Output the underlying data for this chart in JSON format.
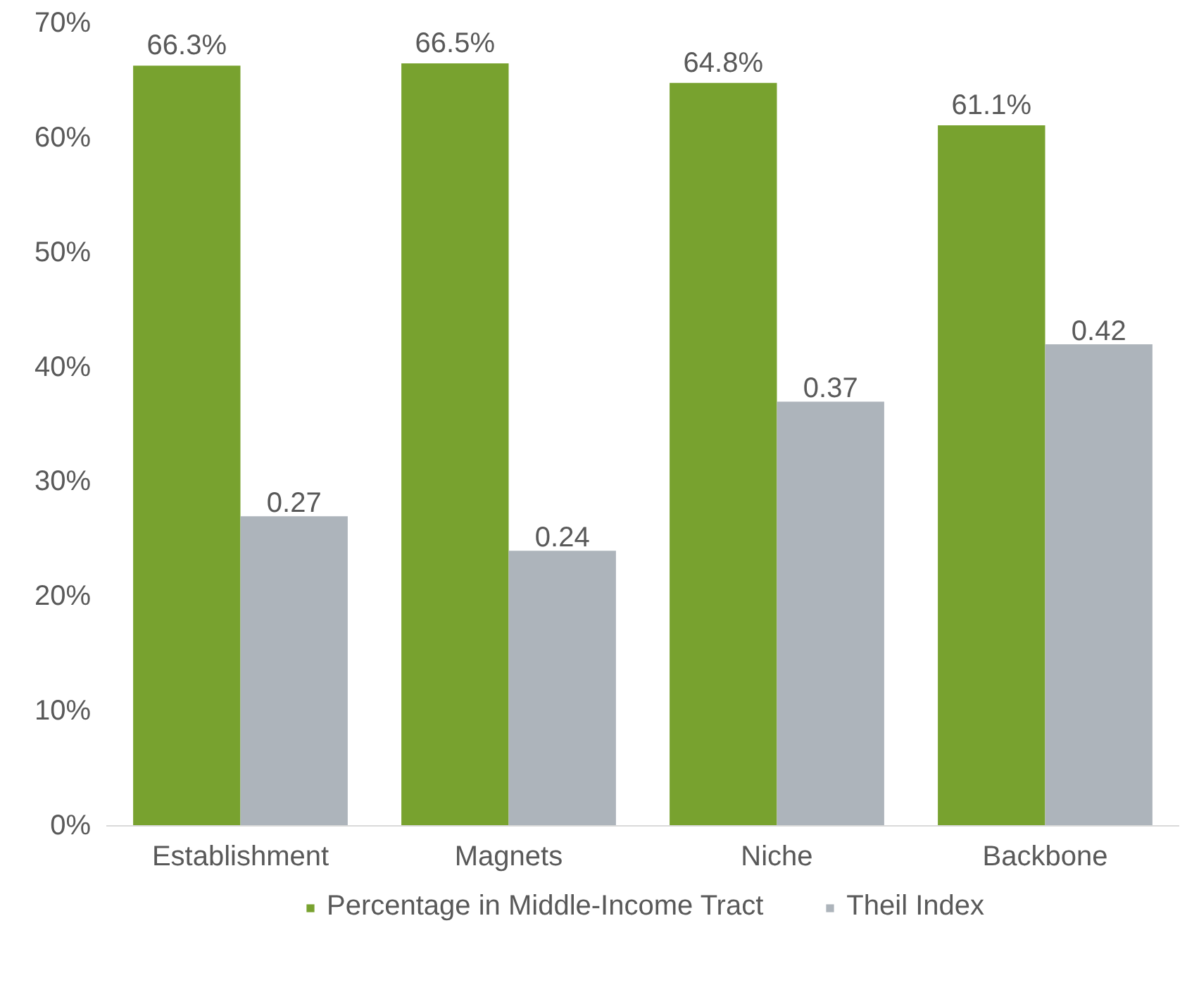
{
  "chart_data": {
    "type": "bar",
    "categories": [
      "Establishment",
      "Magnets",
      "Niche",
      "Backbone"
    ],
    "series": [
      {
        "name": "Percentage in Middle-Income Tract",
        "color": "#78a22f",
        "values": [
          66.3,
          66.5,
          64.8,
          61.1
        ],
        "value_labels": [
          "66.3%",
          "66.5%",
          "64.8%",
          "61.1%"
        ]
      },
      {
        "name": "Theil Index",
        "color": "#adb4bb",
        "axis": "y2",
        "values": [
          0.27,
          0.24,
          0.37,
          0.42
        ],
        "value_labels": [
          "0.27",
          "0.24",
          "0.37",
          "0.42"
        ]
      }
    ],
    "ylim": [
      0,
      70
    ],
    "yticks": [
      {
        "value": 0,
        "label": "0%"
      },
      {
        "value": 10,
        "label": "10%"
      },
      {
        "value": 20,
        "label": "20%"
      },
      {
        "value": 30,
        "label": "30%"
      },
      {
        "value": 40,
        "label": "40%"
      },
      {
        "value": 50,
        "label": "50%"
      },
      {
        "value": 60,
        "label": "60%"
      },
      {
        "value": 70,
        "label": "70%"
      }
    ],
    "grid": false,
    "legend": "bottom"
  }
}
